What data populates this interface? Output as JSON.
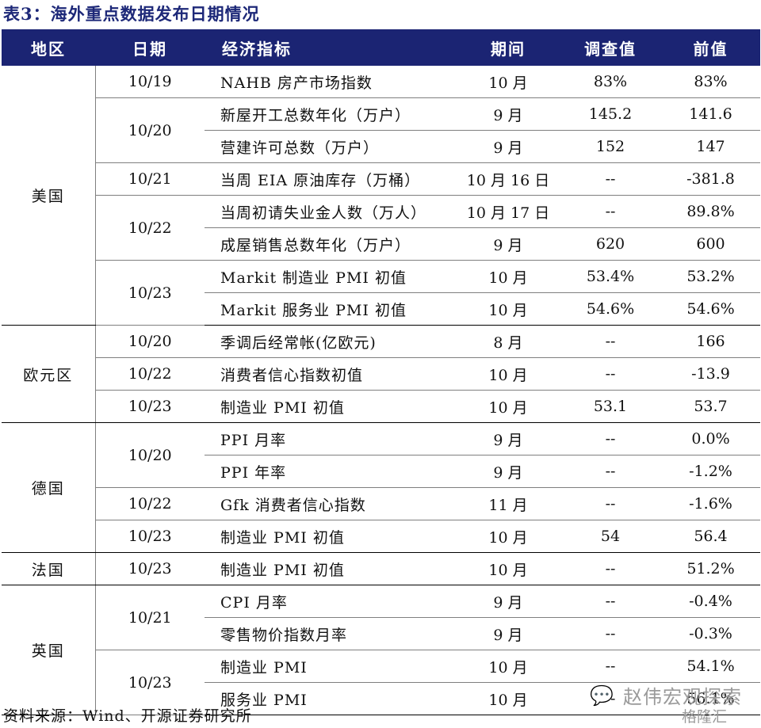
{
  "title": "表3：海外重点数据发布日期情况",
  "headers": {
    "region": "地区",
    "date": "日期",
    "indicator": "经济指标",
    "period": "期间",
    "survey": "调查值",
    "previous": "前值"
  },
  "rows": [
    {
      "region": "美国",
      "date": "10/19",
      "indicator": "NAHB 房产市场指数",
      "period": "10 月",
      "survey": "83%",
      "previous": "83%"
    },
    {
      "region": "美国",
      "date": "10/20",
      "indicator": "新屋开工总数年化（万户）",
      "period": "9 月",
      "survey": "145.2",
      "previous": "141.6"
    },
    {
      "region": "美国",
      "date": "10/20",
      "indicator": "营建许可总数（万户）",
      "period": "9 月",
      "survey": "152",
      "previous": "147"
    },
    {
      "region": "美国",
      "date": "10/21",
      "indicator": "当周 EIA 原油库存（万桶）",
      "period": "10 月 16 日",
      "survey": "--",
      "previous": "-381.8"
    },
    {
      "region": "美国",
      "date": "10/22",
      "indicator": "当周初请失业金人数（万人）",
      "period": "10 月 17 日",
      "survey": "--",
      "previous": "89.8%"
    },
    {
      "region": "美国",
      "date": "10/22",
      "indicator": "成屋销售总数年化（万户）",
      "period": "9 月",
      "survey": "620",
      "previous": "600"
    },
    {
      "region": "美国",
      "date": "10/23",
      "indicator": "Markit 制造业 PMI 初值",
      "period": "10 月",
      "survey": "53.4%",
      "previous": "53.2%"
    },
    {
      "region": "美国",
      "date": "10/23",
      "indicator": "Markit 服务业 PMI 初值",
      "period": "10 月",
      "survey": "54.6%",
      "previous": "54.6%"
    },
    {
      "region": "欧元区",
      "date": "10/20",
      "indicator": "季调后经常帐(亿欧元)",
      "period": "8 月",
      "survey": "--",
      "previous": "166"
    },
    {
      "region": "欧元区",
      "date": "10/22",
      "indicator": "消费者信心指数初值",
      "period": "10 月",
      "survey": "--",
      "previous": "-13.9"
    },
    {
      "region": "欧元区",
      "date": "10/23",
      "indicator": "制造业 PMI 初值",
      "period": "10 月",
      "survey": "53.1",
      "previous": "53.7"
    },
    {
      "region": "德国",
      "date": "10/20",
      "indicator": "PPI 月率",
      "period": "9 月",
      "survey": "--",
      "previous": "0.0%"
    },
    {
      "region": "德国",
      "date": "10/20",
      "indicator": "PPI 年率",
      "period": "9 月",
      "survey": "--",
      "previous": "-1.2%"
    },
    {
      "region": "德国",
      "date": "10/22",
      "indicator": "Gfk 消费者信心指数",
      "period": "11 月",
      "survey": "--",
      "previous": "-1.6%"
    },
    {
      "region": "德国",
      "date": "10/23",
      "indicator": "制造业 PMI 初值",
      "period": "10 月",
      "survey": "54",
      "previous": "56.4"
    },
    {
      "region": "法国",
      "date": "10/23",
      "indicator": "制造业 PMI 初值",
      "period": "10 月",
      "survey": "--",
      "previous": "51.2%"
    },
    {
      "region": "英国",
      "date": "10/21",
      "indicator": "CPI 月率",
      "period": "9 月",
      "survey": "--",
      "previous": "-0.4%"
    },
    {
      "region": "英国",
      "date": "10/21",
      "indicator": "零售物价指数月率",
      "period": "9 月",
      "survey": "--",
      "previous": "-0.3%"
    },
    {
      "region": "英国",
      "date": "10/23",
      "indicator": "制造业 PMI",
      "period": "10 月",
      "survey": "--",
      "previous": "54.1%"
    },
    {
      "region": "英国",
      "date": "10/23",
      "indicator": "服务业 PMI",
      "period": "10 月",
      "survey": "--",
      "previous": "56.1%"
    }
  ],
  "source": "资料来源：Wind、开源证券研究所",
  "watermark": {
    "icon": "wechat-icon",
    "name": "赵伟宏观探索",
    "sub": "格隆汇"
  }
}
